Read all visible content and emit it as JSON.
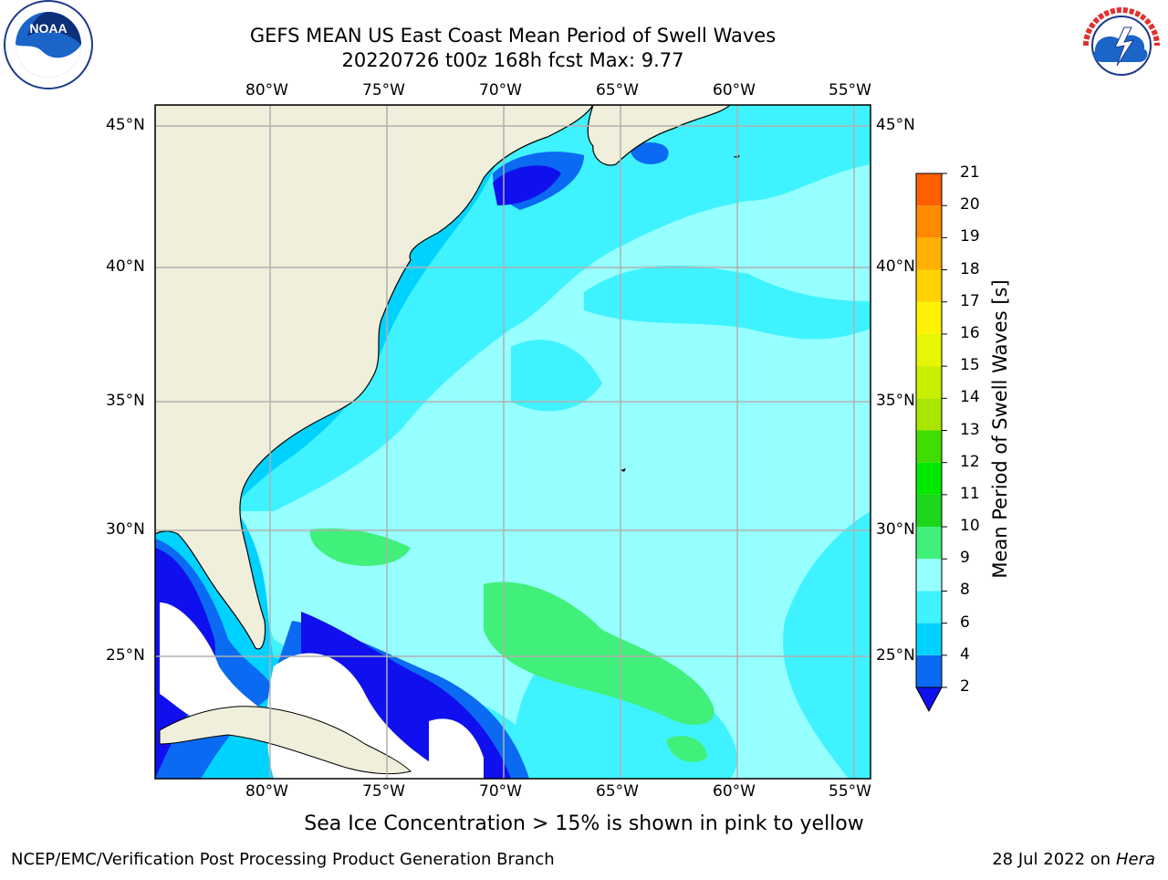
{
  "title_line1": "GEFS MEAN US East Coast Mean Period of Swell Waves",
  "title_line2": "20220726 t00z 168h fcst    Max: 9.77",
  "lon_labels": [
    "80°W",
    "75°W",
    "70°W",
    "65°W",
    "60°W",
    "55°W"
  ],
  "lat_labels": [
    "45°N",
    "40°N",
    "35°N",
    "30°N",
    "25°N"
  ],
  "colorbar": {
    "label": "Mean Period of Swell Waves [s]",
    "ticks": [
      "2",
      "4",
      "6",
      "8",
      "9",
      "10",
      "11",
      "12",
      "13",
      "14",
      "15",
      "16",
      "17",
      "18",
      "19",
      "20",
      "21"
    ],
    "colors": [
      "#0a6af2",
      "#00d2ff",
      "#3ef3ff",
      "#96ffff",
      "#40f07a",
      "#1cd61c",
      "#00e800",
      "#40dd00",
      "#a8e600",
      "#c8ef00",
      "#e6f600",
      "#fff200",
      "#ffd200",
      "#ffb000",
      "#ff8a00",
      "#ff5e00",
      "#ff3200",
      "#ff0000"
    ],
    "extend_color": "#1010ee"
  },
  "ice_note": "Sea Ice Concentration > 15% is shown in pink to yellow",
  "footer_left": "NCEP/EMC/Verification Post Processing Product Generation Branch",
  "footer_date": "28 Jul 2022 on ",
  "footer_machine": "Hera",
  "logos": {
    "noaa": "NOAA",
    "nws": "NATIONAL WEATHER SERVICE"
  }
}
